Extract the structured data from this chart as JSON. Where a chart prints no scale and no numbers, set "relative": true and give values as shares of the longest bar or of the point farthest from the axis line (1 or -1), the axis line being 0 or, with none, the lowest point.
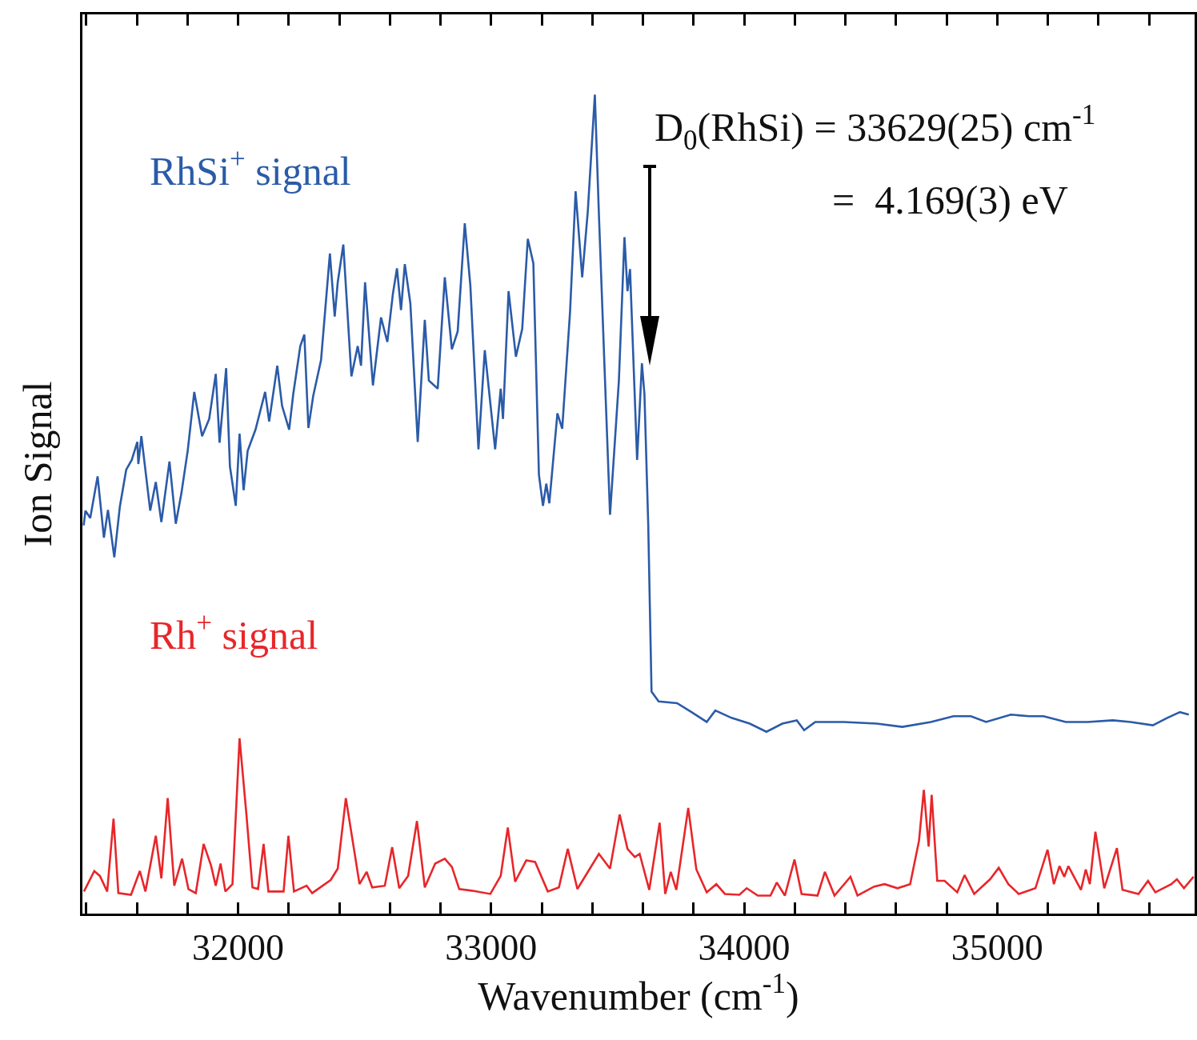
{
  "chart_data": {
    "type": "line",
    "relative": true,
    "xlabel": "Wavenumber (cm$^{-1}$)",
    "ylabel": "Ion Signal",
    "xlim": [
      31385,
      35780
    ],
    "xticks": [
      {
        "value": 31400,
        "label": null
      },
      {
        "value": 31600,
        "label": null
      },
      {
        "value": 31800,
        "label": null
      },
      32000,
      {
        "value": 32200,
        "label": null
      },
      {
        "value": 32400,
        "label": null
      },
      {
        "value": 32600,
        "label": null
      },
      {
        "value": 32800,
        "label": null
      },
      33000,
      {
        "value": 33200,
        "label": null
      },
      {
        "value": 33400,
        "label": null
      },
      {
        "value": 33600,
        "label": null
      },
      {
        "value": 33800,
        "label": null
      },
      34000,
      {
        "value": 34200,
        "label": null
      },
      {
        "value": 34400,
        "label": null
      },
      {
        "value": 34600,
        "label": null
      },
      {
        "value": 34800,
        "label": null
      },
      35000,
      {
        "value": 35200,
        "label": null
      },
      {
        "value": 35400,
        "label": null
      },
      {
        "value": 35600,
        "label": null
      }
    ],
    "annotations": [
      "D$_{0}$(RhSi) = 33629(25) cm$^{-1}$",
      "=  4.169(3) eV"
    ],
    "series": [
      {
        "name": "RhSi$^{+}$ signal",
        "color": "#2b5ba8",
        "x": [
          31390,
          31397,
          31416,
          31445,
          31470,
          31486,
          31511,
          31533,
          31558,
          31580,
          31602,
          31606,
          31618,
          31653,
          31675,
          31697,
          31729,
          31754,
          31776,
          31801,
          31827,
          31858,
          31886,
          31912,
          31927,
          31953,
          31968,
          31991,
          32006,
          32022,
          32038,
          32069,
          32107,
          32123,
          32155,
          32174,
          32202,
          32218,
          32246,
          32262,
          32278,
          32297,
          32328,
          32363,
          32382,
          32394,
          32416,
          32448,
          32473,
          32486,
          32502,
          32533,
          32565,
          32590,
          32612,
          32628,
          32644,
          32659,
          32681,
          32710,
          32738,
          32754,
          32789,
          32817,
          32845,
          32868,
          32896,
          32918,
          32950,
          32975,
          33016,
          33038,
          33047,
          33069,
          33098,
          33123,
          33145,
          33167,
          33189,
          33205,
          33218,
          33230,
          33262,
          33281,
          33312,
          33334,
          33360,
          33382,
          33410,
          33426,
          33448,
          33470,
          33505,
          33527,
          33539,
          33549,
          33577,
          33596,
          33606,
          33621,
          33634,
          33662,
          33735,
          33792,
          33852,
          33886,
          33950,
          34022,
          34088,
          34151,
          34208,
          34237,
          34281,
          34394,
          34524,
          34625,
          34738,
          34827,
          34896,
          34956,
          35054,
          35126,
          35183,
          35271,
          35357,
          35457,
          35527,
          35615,
          35672,
          35722,
          35757
        ],
        "values": [
          0.474,
          0.492,
          0.483,
          0.534,
          0.459,
          0.493,
          0.435,
          0.497,
          0.542,
          0.554,
          0.576,
          0.549,
          0.583,
          0.492,
          0.527,
          0.478,
          0.552,
          0.476,
          0.513,
          0.565,
          0.637,
          0.583,
          0.604,
          0.659,
          0.575,
          0.666,
          0.546,
          0.498,
          0.586,
          0.517,
          0.565,
          0.591,
          0.637,
          0.601,
          0.669,
          0.62,
          0.591,
          0.634,
          0.693,
          0.707,
          0.593,
          0.632,
          0.676,
          0.806,
          0.729,
          0.771,
          0.817,
          0.656,
          0.693,
          0.669,
          0.771,
          0.645,
          0.728,
          0.698,
          0.757,
          0.788,
          0.737,
          0.793,
          0.745,
          0.576,
          0.725,
          0.651,
          0.641,
          0.777,
          0.689,
          0.711,
          0.843,
          0.767,
          0.567,
          0.688,
          0.567,
          0.641,
          0.604,
          0.76,
          0.68,
          0.714,
          0.824,
          0.794,
          0.536,
          0.498,
          0.525,
          0.501,
          0.611,
          0.592,
          0.735,
          0.882,
          0.777,
          0.857,
          1,
          0.854,
          0.669,
          0.487,
          0.651,
          0.826,
          0.76,
          0.787,
          0.554,
          0.672,
          0.634,
          0.474,
          0.271,
          0.259,
          0.257,
          0.246,
          0.234,
          0.248,
          0.239,
          0.232,
          0.222,
          0.232,
          0.236,
          0.224,
          0.234,
          0.234,
          0.232,
          0.228,
          0.234,
          0.241,
          0.241,
          0.234,
          0.243,
          0.241,
          0.241,
          0.234,
          0.234,
          0.236,
          0.234,
          0.23,
          0.239,
          0.246,
          0.243
        ]
      },
      {
        "name": "Rh$^{+}$ signal",
        "color": "#e8262a",
        "x": [
          31391,
          31432,
          31454,
          31483,
          31508,
          31527,
          31577,
          31612,
          31634,
          31675,
          31697,
          31722,
          31748,
          31779,
          31804,
          31833,
          31864,
          31893,
          31912,
          31931,
          31950,
          31978,
          32006,
          32032,
          32057,
          32079,
          32101,
          32120,
          32180,
          32199,
          32221,
          32271,
          32293,
          32366,
          32394,
          32426,
          32457,
          32480,
          32508,
          32530,
          32580,
          32609,
          32637,
          32672,
          32707,
          32738,
          32779,
          32817,
          32845,
          32874,
          32924,
          32997,
          33038,
          33066,
          33095,
          33139,
          33174,
          33224,
          33268,
          33303,
          33341,
          33426,
          33470,
          33508,
          33539,
          33568,
          33587,
          33625,
          33666,
          33688,
          33710,
          33732,
          33779,
          33811,
          33852,
          33890,
          33924,
          33981,
          34010,
          34054,
          34104,
          34129,
          34161,
          34199,
          34227,
          34290,
          34319,
          34357,
          34420,
          34448,
          34514,
          34555,
          34606,
          34656,
          34691,
          34710,
          34729,
          34741,
          34763,
          34792,
          34842,
          34871,
          34909,
          34972,
          35006,
          35044,
          35085,
          35151,
          35199,
          35224,
          35246,
          35265,
          35281,
          35331,
          35350,
          35366,
          35388,
          35423,
          35473,
          35495,
          35558,
          35596,
          35625,
          35688,
          35710,
          35738,
          35776
        ],
        "values": [
          0.027,
          0.052,
          0.046,
          0.027,
          0.116,
          0.025,
          0.023,
          0.052,
          0.027,
          0.095,
          0.043,
          0.141,
          0.034,
          0.067,
          0.03,
          0.025,
          0.085,
          0.059,
          0.034,
          0.061,
          0.027,
          0.036,
          0.214,
          0.125,
          0.032,
          0.03,
          0.085,
          0.027,
          0.027,
          0.095,
          0.027,
          0.034,
          0.025,
          0.041,
          0.055,
          0.141,
          0.081,
          0.036,
          0.051,
          0.032,
          0.034,
          0.081,
          0.031,
          0.046,
          0.113,
          0.032,
          0.061,
          0.067,
          0.057,
          0.03,
          0.028,
          0.024,
          0.046,
          0.105,
          0.039,
          0.065,
          0.063,
          0.027,
          0.032,
          0.079,
          0.03,
          0.073,
          0.055,
          0.121,
          0.079,
          0.069,
          0.073,
          0.029,
          0.111,
          0.024,
          0.051,
          0.029,
          0.129,
          0.054,
          0.026,
          0.036,
          0.024,
          0.023,
          0.031,
          0.022,
          0.022,
          0.038,
          0.022,
          0.066,
          0.024,
          0.022,
          0.051,
          0.022,
          0.045,
          0.022,
          0.033,
          0.036,
          0.031,
          0.036,
          0.089,
          0.151,
          0.082,
          0.145,
          0.04,
          0.04,
          0.026,
          0.047,
          0.024,
          0.042,
          0.056,
          0.036,
          0.024,
          0.031,
          0.078,
          0.036,
          0.058,
          0.045,
          0.058,
          0.029,
          0.054,
          0.036,
          0.1,
          0.031,
          0.08,
          0.029,
          0.024,
          0.04,
          0.026,
          0.036,
          0.042,
          0.031,
          0.045
        ]
      }
    ]
  }
}
